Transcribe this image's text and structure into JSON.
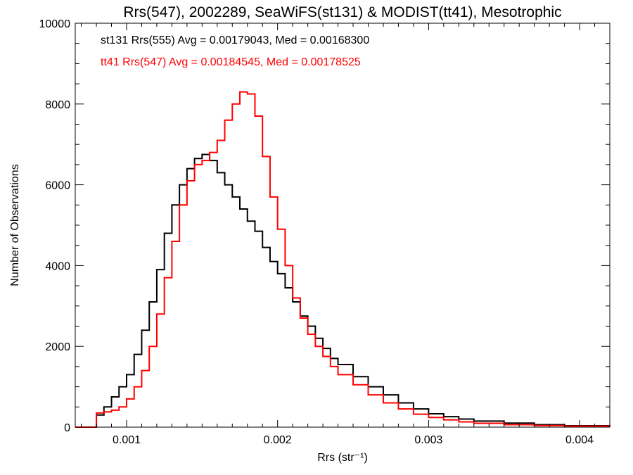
{
  "chart_data": {
    "type": "line",
    "title": "Rrs(547), 2002289, SeaWiFS(st131) & MODIST(tt41), Mesotrophic",
    "xlabel": "Rrs (str⁻¹)",
    "ylabel": "Number of Observations",
    "xlim": [
      0.00066,
      0.0042
    ],
    "ylim": [
      0,
      10000
    ],
    "x_ticks": [
      0.001,
      0.002,
      0.003,
      0.004
    ],
    "x_tick_labels": [
      "0.001",
      "0.002",
      "0.003",
      "0.004"
    ],
    "y_ticks": [
      0,
      2000,
      4000,
      6000,
      8000,
      10000
    ],
    "y_tick_labels": [
      "0",
      "2000",
      "4000",
      "6000",
      "8000",
      "10000"
    ],
    "grid": false,
    "step": true,
    "annotations": [
      {
        "text": "st131 Rrs(555) Avg = 0.00179043, Med = 0.00168300",
        "color": "#000000"
      },
      {
        "text": "tt41 Rrs(547) Avg = 0.00184545, Med = 0.00178525",
        "color": "#ff0000"
      }
    ],
    "series": [
      {
        "color": "#000000",
        "x": [
          0.00066,
          0.0008,
          0.00085,
          0.0009,
          0.00095,
          0.001,
          0.00105,
          0.0011,
          0.00115,
          0.0012,
          0.00125,
          0.0013,
          0.00135,
          0.0014,
          0.00145,
          0.0015,
          0.00155,
          0.0016,
          0.00165,
          0.0017,
          0.00175,
          0.0018,
          0.00185,
          0.0019,
          0.00195,
          0.002,
          0.00205,
          0.0021,
          0.00215,
          0.0022,
          0.00225,
          0.0023,
          0.00235,
          0.0024,
          0.0025,
          0.0026,
          0.0027,
          0.0028,
          0.0029,
          0.003,
          0.0031,
          0.0032,
          0.0033,
          0.0035,
          0.0037,
          0.0039,
          0.0042
        ],
        "y": [
          0,
          300,
          500,
          750,
          1000,
          1300,
          1800,
          2400,
          3100,
          3900,
          4800,
          5500,
          6000,
          6400,
          6650,
          6750,
          6600,
          6300,
          6000,
          5700,
          5400,
          5100,
          4850,
          4450,
          4100,
          3800,
          3450,
          3100,
          2750,
          2500,
          2200,
          1950,
          1700,
          1550,
          1250,
          1000,
          800,
          600,
          450,
          330,
          260,
          200,
          150,
          100,
          60,
          35,
          20
        ]
      },
      {
        "color": "#ff0000",
        "x": [
          0.00066,
          0.0008,
          0.00085,
          0.0009,
          0.00095,
          0.001,
          0.00105,
          0.0011,
          0.00115,
          0.0012,
          0.00125,
          0.0013,
          0.00135,
          0.0014,
          0.00145,
          0.0015,
          0.00155,
          0.0016,
          0.00165,
          0.0017,
          0.00175,
          0.0018,
          0.00185,
          0.0019,
          0.00195,
          0.002,
          0.00205,
          0.0021,
          0.00215,
          0.0022,
          0.00225,
          0.0023,
          0.00235,
          0.0024,
          0.0025,
          0.0026,
          0.0027,
          0.0028,
          0.0029,
          0.003,
          0.0031,
          0.0032,
          0.0033,
          0.0035,
          0.0037,
          0.0039,
          0.0042
        ],
        "y": [
          0,
          350,
          380,
          420,
          500,
          700,
          1000,
          1400,
          2000,
          2800,
          3700,
          4600,
          5500,
          6100,
          6500,
          6600,
          6800,
          7100,
          7600,
          8000,
          8300,
          8250,
          7700,
          6700,
          5700,
          4900,
          4000,
          3200,
          2700,
          2300,
          2000,
          1750,
          1500,
          1300,
          1050,
          800,
          600,
          450,
          320,
          240,
          180,
          130,
          95,
          60,
          40,
          25,
          15
        ]
      }
    ]
  }
}
